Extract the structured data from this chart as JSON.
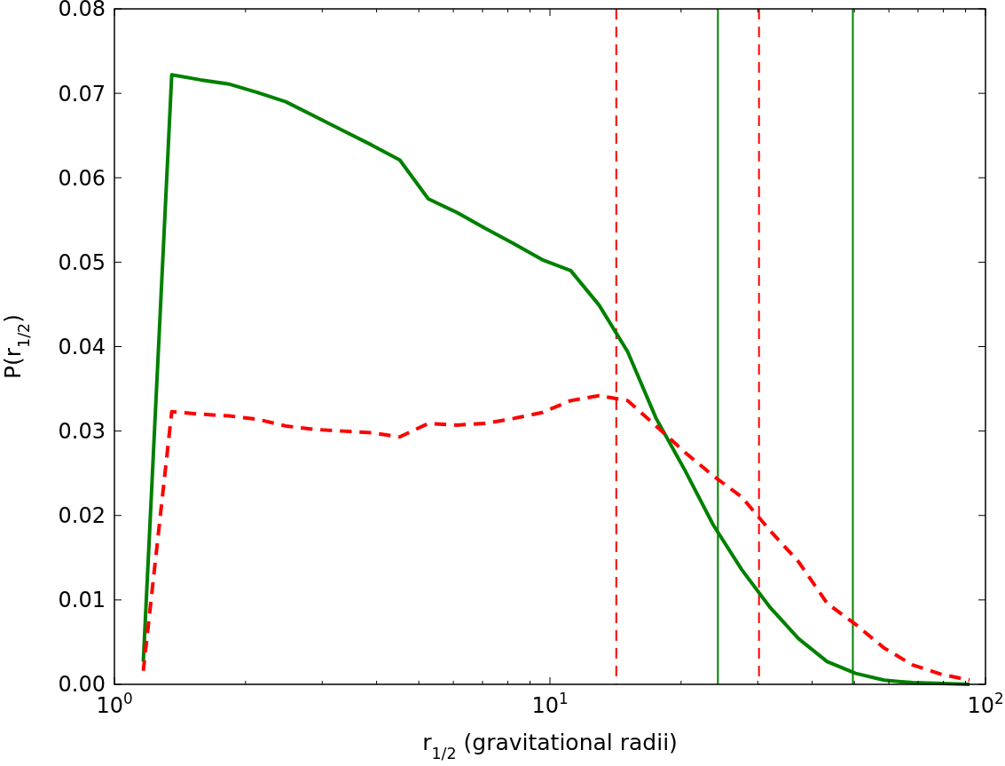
{
  "chart_data": {
    "type": "line",
    "xlabel": "r$_{1/2}$  (gravitational radii)",
    "ylabel": "P(r$_{1/2}$)",
    "log": "x",
    "x": [
      1.165,
      1.354,
      1.574,
      1.83,
      2.128,
      2.474,
      2.876,
      3.344,
      3.888,
      4.52,
      5.255,
      6.109,
      7.102,
      8.257,
      9.598,
      11.16,
      12.97,
      15.08,
      17.53,
      20.39,
      23.7,
      27.55,
      32.03,
      37.24,
      43.29,
      50.33,
      58.51,
      68.02,
      79.08,
      91.95
    ],
    "series": [
      {
        "color": "#008000",
        "line_style": "solid",
        "values": [
          0.0027,
          0.0722,
          0.0716,
          0.0711,
          0.0701,
          0.069,
          0.0673,
          0.0656,
          0.0639,
          0.0621,
          0.0575,
          0.0559,
          0.054,
          0.0522,
          0.0503,
          0.049,
          0.0449,
          0.0394,
          0.0315,
          0.0254,
          0.0189,
          0.0136,
          0.0091,
          0.0054,
          0.0027,
          0.0013,
          0.0005,
          0.0002,
          0.0001,
          0.0
        ]
      },
      {
        "color": "#ff0000",
        "line_style": "dashed",
        "values": [
          0.0016,
          0.0323,
          0.032,
          0.0318,
          0.0314,
          0.0306,
          0.0302,
          0.03,
          0.0298,
          0.0293,
          0.0309,
          0.0307,
          0.0309,
          0.0315,
          0.0322,
          0.0336,
          0.0342,
          0.0336,
          0.0306,
          0.0275,
          0.0247,
          0.0222,
          0.0182,
          0.0145,
          0.0096,
          0.0071,
          0.0043,
          0.0023,
          0.0012,
          0.0005
        ]
      }
    ],
    "xlim": [
      1,
      100
    ],
    "xticks": [
      {
        "value": 1,
        "label": "10$^{0}$"
      },
      {
        "value": 2,
        "label": null
      },
      {
        "value": 3,
        "label": null
      },
      {
        "value": 4,
        "label": null
      },
      {
        "value": 5,
        "label": null
      },
      {
        "value": 6,
        "label": null
      },
      {
        "value": 7,
        "label": null
      },
      {
        "value": 8,
        "label": null
      },
      {
        "value": 9,
        "label": null
      },
      {
        "value": 10,
        "label": "10$^{1}$"
      },
      {
        "value": 20,
        "label": null
      },
      {
        "value": 30,
        "label": null
      },
      {
        "value": 40,
        "label": null
      },
      {
        "value": 50,
        "label": null
      },
      {
        "value": 60,
        "label": null
      },
      {
        "value": 70,
        "label": null
      },
      {
        "value": 80,
        "label": null
      },
      {
        "value": 90,
        "label": null
      },
      {
        "value": 100,
        "label": "10$^{2}$"
      }
    ],
    "ylim": [
      0,
      0.08
    ],
    "yticks": [
      {
        "value": 0,
        "label": "0.00"
      },
      {
        "value": 0.01,
        "label": "0.01"
      },
      {
        "value": 0.02,
        "label": "0.02"
      },
      {
        "value": 0.03,
        "label": "0.03"
      },
      {
        "value": 0.04,
        "label": "0.04"
      },
      {
        "value": 0.05,
        "label": "0.05"
      },
      {
        "value": 0.06,
        "label": "0.06"
      },
      {
        "value": 0.07,
        "label": "0.07"
      },
      {
        "value": 0.08,
        "label": "0.08"
      }
    ],
    "ref_lines": [
      {
        "axis": "x",
        "value": 14.2,
        "color": "#ff0000",
        "line_style": "dashed"
      },
      {
        "axis": "x",
        "value": 30.2,
        "color": "#ff0000",
        "line_style": "dashed"
      },
      {
        "axis": "x",
        "value": 24.3,
        "color": "#008000",
        "line_style": "solid"
      },
      {
        "axis": "x",
        "value": 49.6,
        "color": "#008000",
        "line_style": "solid"
      }
    ],
    "grid": false,
    "marker": "none"
  }
}
